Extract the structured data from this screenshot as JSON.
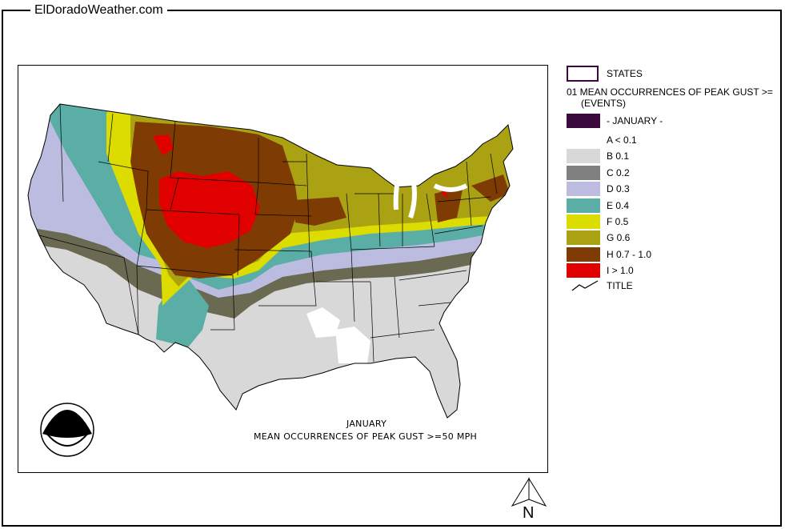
{
  "header": {
    "site_title": "ElDoradoWeather.com"
  },
  "map": {
    "caption_month": "JANUARY",
    "caption_title": "MEAN OCCURRENCES OF PEAK GUST >=50 MPH",
    "logo_text": "noaa"
  },
  "legend": {
    "states_label": "STATES",
    "layer_title_line1": "01 MEAN OCCURRENCES OF PEAK GUST >=",
    "layer_title_line2": "(EVENTS)",
    "month_label": "- JANUARY -",
    "month_color": "#3a0a3e",
    "classes": [
      {
        "label": "A < 0.1",
        "color": "#ffffff"
      },
      {
        "label": "B 0.1",
        "color": "#d8d8d8"
      },
      {
        "label": "C 0.2",
        "color": "#808080"
      },
      {
        "label": "D 0.3",
        "color": "#bcbce0"
      },
      {
        "label": "E 0.4",
        "color": "#5aaea6"
      },
      {
        "label": "F 0.5",
        "color": "#dcdc00"
      },
      {
        "label": "G 0.6",
        "color": "#aaa212"
      },
      {
        "label": "H 0.7 - 1.0",
        "color": "#7e3c04"
      },
      {
        "label": "I > 1.0",
        "color": "#e10000"
      }
    ],
    "title_label": "TITLE"
  },
  "compass": {
    "label": "N"
  }
}
